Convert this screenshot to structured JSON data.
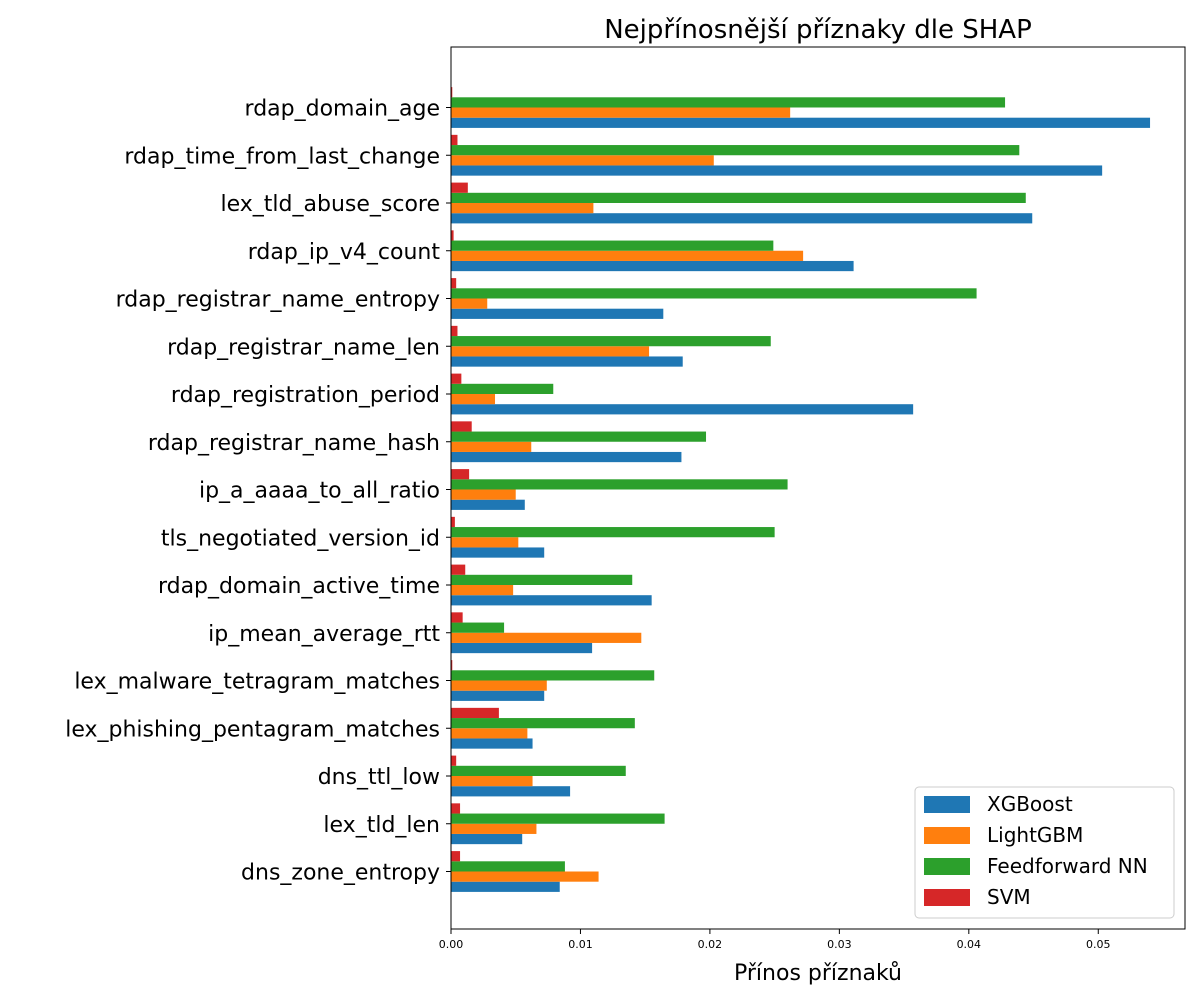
{
  "chart_data": {
    "type": "bar",
    "orientation": "horizontal",
    "title": "Nejpřínosnější příznaky dle SHAP",
    "xlabel": "Přínos příznaků",
    "ylabel": "",
    "xlim": [
      0,
      0.0567
    ],
    "xticks": [
      0.0,
      0.01,
      0.02,
      0.03,
      0.04,
      0.05
    ],
    "xtick_labels": [
      "0.00",
      "0.01",
      "0.02",
      "0.03",
      "0.04",
      "0.05"
    ],
    "grid": false,
    "legend_position": "lower-right",
    "categories": [
      "rdap_domain_age",
      "rdap_time_from_last_change",
      "lex_tld_abuse_score",
      "rdap_ip_v4_count",
      "rdap_registrar_name_entropy",
      "rdap_registrar_name_len",
      "rdap_registration_period",
      "rdap_registrar_name_hash",
      "ip_a_aaaa_to_all_ratio",
      "tls_negotiated_version_id",
      "rdap_domain_active_time",
      "ip_mean_average_rtt",
      "lex_malware_tetragram_matches",
      "lex_phishing_pentagram_matches",
      "dns_ttl_low",
      "lex_tld_len",
      "dns_zone_entropy"
    ],
    "series": [
      {
        "name": "XGBoost",
        "color": "#1f77b4",
        "values": [
          0.054,
          0.0503,
          0.0449,
          0.0311,
          0.0164,
          0.0179,
          0.0357,
          0.0178,
          0.0057,
          0.0072,
          0.0155,
          0.0109,
          0.0072,
          0.0063,
          0.0092,
          0.0055,
          0.0084
        ]
      },
      {
        "name": "LightGBM",
        "color": "#ff7f0e",
        "values": [
          0.0262,
          0.0203,
          0.011,
          0.0272,
          0.0028,
          0.0153,
          0.0034,
          0.0062,
          0.005,
          0.0052,
          0.0048,
          0.0147,
          0.0074,
          0.0059,
          0.0063,
          0.0066,
          0.0114
        ]
      },
      {
        "name": "Feedforward NN",
        "color": "#2ca02c",
        "values": [
          0.0428,
          0.0439,
          0.0444,
          0.0249,
          0.0406,
          0.0247,
          0.0079,
          0.0197,
          0.026,
          0.025,
          0.014,
          0.0041,
          0.0157,
          0.0142,
          0.0135,
          0.0165,
          0.0088
        ]
      },
      {
        "name": "SVM",
        "color": "#d62728",
        "values": [
          0.0001,
          0.0005,
          0.0013,
          0.0002,
          0.0004,
          0.0005,
          0.0008,
          0.0016,
          0.0014,
          0.0003,
          0.0011,
          0.0009,
          0.0001,
          0.0037,
          0.0004,
          0.0007,
          0.0007
        ]
      }
    ]
  }
}
